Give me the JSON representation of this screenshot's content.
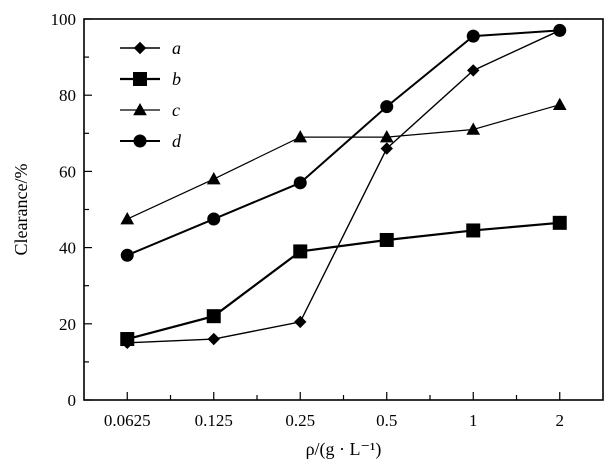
{
  "chart_data": {
    "type": "line",
    "title": "",
    "xlabel": "ρ/(g · L⁻¹)",
    "ylabel": "Clearance/%",
    "categories": [
      "0.0625",
      "0.125",
      "0.25",
      "0.5",
      "1",
      "2"
    ],
    "ylim": [
      0,
      100
    ],
    "yticks": [
      0,
      20,
      40,
      60,
      80,
      100
    ],
    "grid": false,
    "legend_position": "top-left",
    "series": [
      {
        "name": "a",
        "marker": "diamond",
        "values": [
          15,
          16,
          20.5,
          66,
          86.5,
          97
        ]
      },
      {
        "name": "b",
        "marker": "square",
        "values": [
          16,
          22,
          39,
          42,
          44.5,
          46.5
        ]
      },
      {
        "name": "c",
        "marker": "triangle",
        "values": [
          47.5,
          58,
          69,
          69,
          71,
          77.5
        ]
      },
      {
        "name": "d",
        "marker": "circle",
        "values": [
          38,
          47.5,
          57,
          77,
          95.5,
          97
        ]
      }
    ],
    "colors": {
      "line": "#000000",
      "marker": "#000000",
      "background": "#ffffff"
    }
  }
}
